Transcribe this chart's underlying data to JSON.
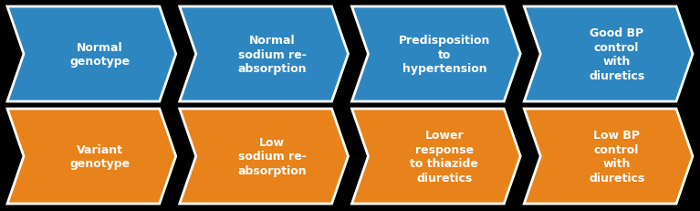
{
  "rows": [
    {
      "color": "#2E86C1",
      "labels": [
        "Normal\ngenotype",
        "Normal\nsodium re-\nabsorption",
        "Predisposition\nto\nhypertension",
        "Good BP\ncontrol\nwith\ndiuretics"
      ]
    },
    {
      "color": "#E8821A",
      "labels": [
        "Variant\ngenotype",
        "Low\nsodium re-\nabsorption",
        "Lower\nresponse\nto thiazide\ndiuretics",
        "Low BP\ncontrol\nwith\ndiuretics"
      ]
    }
  ],
  "background_color": "#000000",
  "text_color": "#FFFFFF",
  "n_arrows": 4,
  "font_size": 9.0,
  "fig_width": 7.67,
  "fig_height": 2.32
}
